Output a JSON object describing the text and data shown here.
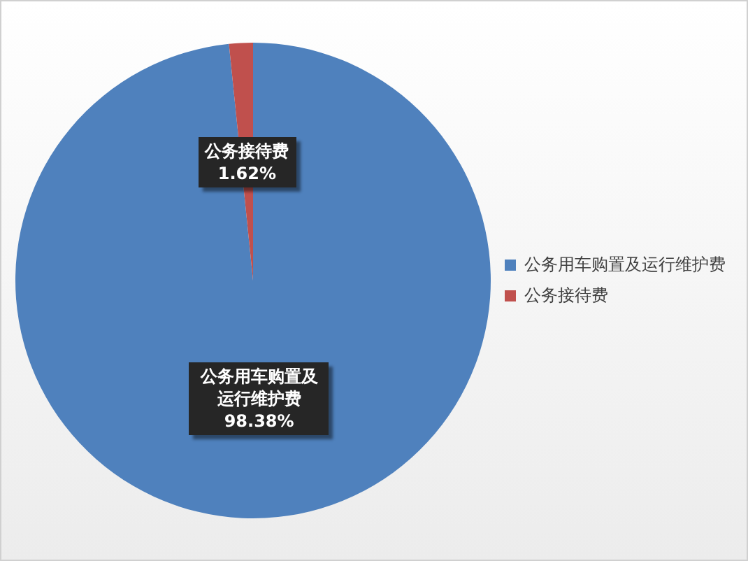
{
  "chart_data": {
    "type": "pie",
    "categories": [
      "公务用车购置及运行维护费",
      "公务接待费"
    ],
    "values": [
      98.38,
      1.62
    ],
    "colors": [
      "#4f81bd",
      "#c0504d"
    ],
    "data_labels": true,
    "value_labels": [
      "98.38%",
      "1.62%"
    ],
    "legend": "right"
  }
}
